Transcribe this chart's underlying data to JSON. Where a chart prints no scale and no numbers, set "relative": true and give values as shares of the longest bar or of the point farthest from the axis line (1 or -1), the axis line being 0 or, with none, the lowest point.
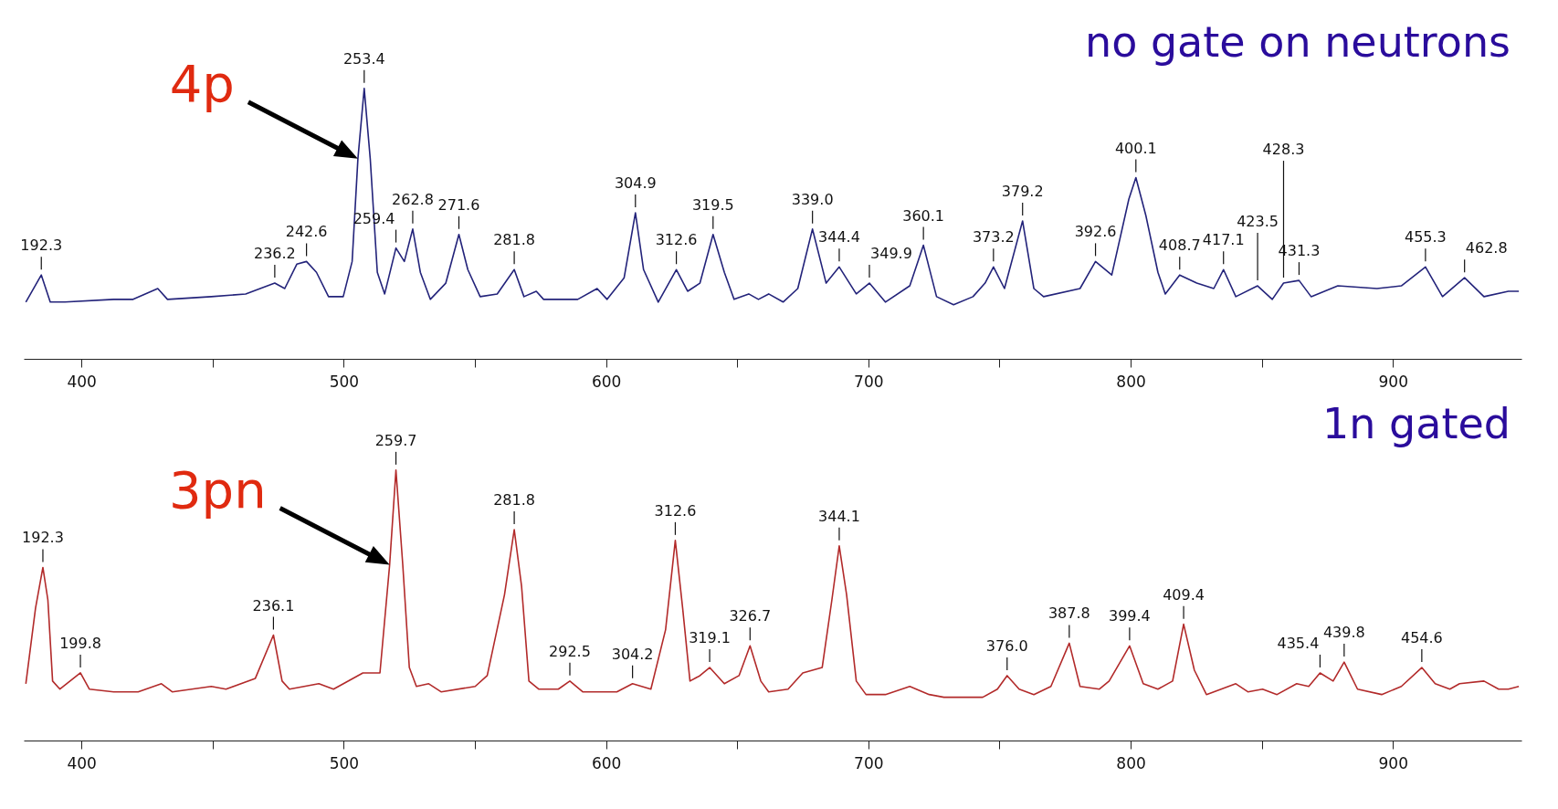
{
  "chart_data": [
    {
      "type": "line",
      "relative": true,
      "grid": false,
      "legend": false,
      "xlim": [
        378,
        949
      ],
      "xticks": [
        400,
        {
          "value": 450,
          "label": null
        },
        500,
        {
          "value": 550,
          "label": null
        },
        600,
        {
          "value": 650,
          "label": null
        },
        700,
        {
          "value": 750,
          "label": null
        },
        800,
        {
          "value": 850,
          "label": null
        },
        900
      ],
      "annotations": [
        "no gate on neutrons",
        {
          "text": "4p",
          "x": 505.4,
          "y": 0.74
        },
        {
          "text": "192.3",
          "x": 384.7,
          "y": 0.31
        },
        {
          "text": "236.2",
          "x": 473.7,
          "y": 0.28
        },
        {
          "text": "242.6",
          "x": 485.8,
          "y": 0.36
        },
        {
          "text": "253.4",
          "x": 507.8,
          "y": 1.0
        },
        {
          "text": "259.4",
          "x": 519.9,
          "y": 0.41
        },
        {
          "text": "262.8",
          "x": 526.3,
          "y": 0.48
        },
        {
          "text": "271.6",
          "x": 543.9,
          "y": 0.46
        },
        {
          "text": "281.8",
          "x": 565.0,
          "y": 0.33
        },
        {
          "text": "304.9",
          "x": 611.2,
          "y": 0.54
        },
        {
          "text": "312.6",
          "x": 626.8,
          "y": 0.33
        },
        {
          "text": "319.5",
          "x": 640.8,
          "y": 0.46
        },
        {
          "text": "339.0",
          "x": 678.7,
          "y": 0.48
        },
        {
          "text": "344.4",
          "x": 688.9,
          "y": 0.34
        },
        {
          "text": "349.9",
          "x": 700.4,
          "y": 0.28
        },
        {
          "text": "360.1",
          "x": 721.0,
          "y": 0.42
        },
        {
          "text": "373.2",
          "x": 747.7,
          "y": 0.34
        },
        {
          "text": "379.2",
          "x": 758.8,
          "y": 0.51
        },
        {
          "text": "392.6",
          "x": 786.6,
          "y": 0.36
        },
        {
          "text": "400.1",
          "x": 802.0,
          "y": 0.67
        },
        {
          "text": "408.7",
          "x": 818.7,
          "y": 0.31
        },
        {
          "text": "417.1",
          "x": 835.4,
          "y": 0.33
        },
        {
          "text": "423.5",
          "x": 848.4,
          "y": 0.27
        },
        {
          "text": "428.3",
          "x": 858.3,
          "y": 0.28
        },
        {
          "text": "431.3",
          "x": 864.2,
          "y": 0.29
        },
        {
          "text": "455.3",
          "x": 912.4,
          "y": 0.34
        },
        {
          "text": "462.8",
          "x": 927.3,
          "y": 0.3
        }
      ],
      "x": [
        378.8,
        384.7,
        388.1,
        393.7,
        412.3,
        419.7,
        429.1,
        432.8,
        449.5,
        462.6,
        473.7,
        477.5,
        482.1,
        485.8,
        489.6,
        494.2,
        499.8,
        503.2,
        505.4,
        507.8,
        510.1,
        512.8,
        515.6,
        519.9,
        523.1,
        526.3,
        529.2,
        533.0,
        538.9,
        543.9,
        547.3,
        552.0,
        558.5,
        565.0,
        568.7,
        573.4,
        576.2,
        589.2,
        596.6,
        600.4,
        606.9,
        611.2,
        614.3,
        619.9,
        626.8,
        631.1,
        635.8,
        640.8,
        645.1,
        648.8,
        654.4,
        658.1,
        662.0,
        667.5,
        673.1,
        678.7,
        683.9,
        688.9,
        695.4,
        700.4,
        706.5,
        715.8,
        721.0,
        726.0,
        732.5,
        739.9,
        744.5,
        747.7,
        751.9,
        758.8,
        763.1,
        766.8,
        780.7,
        786.6,
        792.8,
        799.3,
        802.0,
        805.8,
        810.4,
        813.2,
        818.7,
        825.2,
        831.7,
        835.4,
        840.1,
        848.4,
        854.0,
        858.3,
        864.2,
        868.8,
        879.0,
        893.9,
        903.2,
        912.4,
        918.9,
        927.3,
        934.7,
        944.0,
        948.0
      ],
      "series": [
        {
          "color": "#23237a",
          "values": [
            0.21,
            0.31,
            0.21,
            0.21,
            0.22,
            0.22,
            0.26,
            0.22,
            0.23,
            0.24,
            0.28,
            0.26,
            0.35,
            0.36,
            0.32,
            0.23,
            0.23,
            0.36,
            0.74,
            1.0,
            0.74,
            0.32,
            0.24,
            0.41,
            0.36,
            0.48,
            0.32,
            0.22,
            0.28,
            0.46,
            0.33,
            0.23,
            0.24,
            0.33,
            0.23,
            0.25,
            0.22,
            0.22,
            0.26,
            0.22,
            0.3,
            0.54,
            0.33,
            0.21,
            0.33,
            0.25,
            0.28,
            0.46,
            0.32,
            0.22,
            0.24,
            0.22,
            0.24,
            0.21,
            0.26,
            0.48,
            0.28,
            0.34,
            0.24,
            0.28,
            0.21,
            0.27,
            0.42,
            0.23,
            0.2,
            0.23,
            0.28,
            0.34,
            0.26,
            0.51,
            0.26,
            0.23,
            0.26,
            0.36,
            0.31,
            0.59,
            0.67,
            0.53,
            0.32,
            0.24,
            0.31,
            0.28,
            0.26,
            0.33,
            0.23,
            0.27,
            0.22,
            0.28,
            0.29,
            0.23,
            0.27,
            0.26,
            0.27,
            0.34,
            0.23,
            0.3,
            0.23,
            0.25,
            0.25
          ]
        }
      ]
    },
    {
      "type": "line",
      "relative": true,
      "grid": false,
      "legend": false,
      "xlim": [
        378,
        949
      ],
      "xticks": [
        400,
        {
          "value": 450,
          "label": null
        },
        500,
        {
          "value": 550,
          "label": null
        },
        600,
        {
          "value": 650,
          "label": null
        },
        700,
        {
          "value": 750,
          "label": null
        },
        800,
        {
          "value": 850,
          "label": null
        },
        900
      ],
      "annotations": [
        "1n gated",
        {
          "text": "3pn",
          "x": 517.5,
          "y": 0.65
        },
        {
          "text": "192.3",
          "x": 385.3,
          "y": 0.64
        },
        {
          "text": "199.8",
          "x": 399.6,
          "y": 0.25
        },
        {
          "text": "236.1",
          "x": 473.2,
          "y": 0.39
        },
        {
          "text": "259.7",
          "x": 519.9,
          "y": 1.0
        },
        {
          "text": "281.8",
          "x": 565.0,
          "y": 0.78
        },
        {
          "text": "292.5",
          "x": 586.2,
          "y": 0.22
        },
        {
          "text": "304.2",
          "x": 610.1,
          "y": 0.21
        },
        {
          "text": "312.6",
          "x": 626.4,
          "y": 0.74
        },
        {
          "text": "319.1",
          "x": 639.5,
          "y": 0.27
        },
        {
          "text": "326.7",
          "x": 654.9,
          "y": 0.35
        },
        {
          "text": "344.1",
          "x": 688.9,
          "y": 0.72
        },
        {
          "text": "376.0",
          "x": 752.9,
          "y": 0.24
        },
        {
          "text": "387.8",
          "x": 776.6,
          "y": 0.36
        },
        {
          "text": "399.4",
          "x": 799.6,
          "y": 0.35
        },
        {
          "text": "409.4",
          "x": 820.2,
          "y": 0.43
        },
        {
          "text": "435.4",
          "x": 872.2,
          "y": 0.25
        },
        {
          "text": "439.8",
          "x": 881.4,
          "y": 0.29
        },
        {
          "text": "454.6",
          "x": 911.0,
          "y": 0.27
        }
      ],
      "x": [
        378.8,
        382.5,
        385.3,
        387.2,
        389.0,
        391.8,
        399.6,
        403.0,
        412.3,
        421.6,
        430.5,
        434.6,
        449.5,
        455.1,
        466.3,
        473.2,
        476.5,
        479.3,
        490.5,
        496.1,
        507.3,
        513.8,
        517.5,
        519.9,
        522.5,
        525.0,
        527.7,
        532.4,
        537.1,
        550.1,
        554.7,
        561.3,
        565.0,
        567.8,
        570.6,
        574.3,
        581.8,
        586.2,
        591.1,
        604.1,
        610.1,
        617.1,
        622.7,
        626.4,
        629.2,
        632.0,
        635.8,
        639.5,
        645.1,
        650.7,
        654.9,
        659.0,
        662.0,
        669.4,
        675.0,
        682.4,
        686.1,
        688.9,
        691.7,
        695.4,
        699.1,
        706.5,
        715.8,
        723.2,
        728.8,
        743.6,
        749.2,
        752.9,
        757.5,
        763.1,
        769.6,
        776.6,
        780.7,
        788.1,
        791.8,
        799.6,
        804.8,
        810.4,
        816.0,
        820.2,
        824.3,
        828.9,
        840.1,
        844.7,
        850.3,
        855.8,
        863.3,
        867.9,
        872.2,
        877.2,
        881.4,
        886.5,
        895.7,
        903.2,
        911.0,
        916.1,
        921.7,
        925.4,
        934.7,
        940.3,
        944.0,
        948.0
      ],
      "series": [
        {
          "color": "#b22a2a",
          "values": [
            0.21,
            0.49,
            0.64,
            0.52,
            0.22,
            0.19,
            0.25,
            0.19,
            0.18,
            0.18,
            0.21,
            0.18,
            0.2,
            0.19,
            0.23,
            0.39,
            0.22,
            0.19,
            0.21,
            0.19,
            0.25,
            0.25,
            0.65,
            1.0,
            0.65,
            0.27,
            0.2,
            0.21,
            0.18,
            0.2,
            0.24,
            0.54,
            0.78,
            0.57,
            0.22,
            0.19,
            0.19,
            0.22,
            0.18,
            0.18,
            0.21,
            0.19,
            0.41,
            0.74,
            0.49,
            0.22,
            0.24,
            0.27,
            0.21,
            0.24,
            0.35,
            0.22,
            0.18,
            0.19,
            0.25,
            0.27,
            0.52,
            0.72,
            0.54,
            0.22,
            0.17,
            0.17,
            0.2,
            0.17,
            0.16,
            0.16,
            0.19,
            0.24,
            0.19,
            0.17,
            0.2,
            0.36,
            0.2,
            0.19,
            0.22,
            0.35,
            0.21,
            0.19,
            0.22,
            0.43,
            0.26,
            0.17,
            0.21,
            0.18,
            0.19,
            0.17,
            0.21,
            0.2,
            0.25,
            0.22,
            0.29,
            0.19,
            0.17,
            0.2,
            0.27,
            0.21,
            0.19,
            0.21,
            0.22,
            0.19,
            0.19,
            0.2
          ]
        }
      ]
    }
  ]
}
